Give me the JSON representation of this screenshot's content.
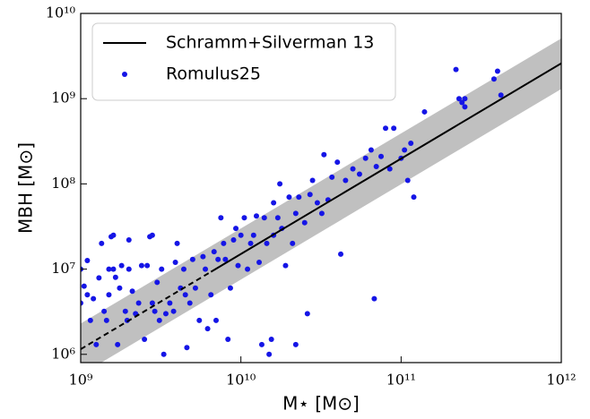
{
  "chart_data": {
    "type": "scatter",
    "xlabel": "M⋆ [M⊙]",
    "ylabel": "MBH [M⊙]",
    "log_x": true,
    "log_y": true,
    "grid": false,
    "legend": "upper left",
    "xlim": [
      1000000000.0,
      1000000000000.0
    ],
    "ylim": [
      800000,
      10000000000
    ],
    "xticks": [
      {
        "value": 1000000000.0,
        "label": "10⁹"
      },
      {
        "value": 10000000000.0,
        "label": "10¹⁰"
      },
      {
        "value": 100000000000.0,
        "label": "10¹¹"
      },
      {
        "value": 1000000000000.0,
        "label": "10¹²"
      }
    ],
    "yticks": [
      {
        "value": 1000000.0,
        "label": "10⁶"
      },
      {
        "value": 10000000.0,
        "label": "10⁷"
      },
      {
        "value": 100000000.0,
        "label": "10⁸"
      },
      {
        "value": 1000000000.0,
        "label": "10⁹"
      },
      {
        "value": 10000000000.0,
        "label": "10¹⁰"
      }
    ],
    "band": {
      "x": [
        1000000000.0,
        1000000000000.0
      ],
      "lower": [
        575000,
        1300000000
      ],
      "upper": [
        2300000,
        5100000000
      ],
      "color": "#c0c0c0"
    },
    "series": [
      {
        "name": "Schramm+Silverman 13",
        "type": "line",
        "color": "#000000",
        "x": [
          1000000000.0,
          6500000000.0,
          1000000000000.0
        ],
        "values": [
          1150000,
          9300000,
          2600000000
        ],
        "linestyles": [
          "dashed",
          "solid"
        ]
      },
      {
        "name": "Romulus25",
        "type": "scatter",
        "color": "#1515e6",
        "x": [
          1000000000.0,
          1050000000.0,
          1000000000.0,
          1100000000.0,
          1100000000.0,
          1150000000.0,
          1200000000.0,
          1250000000.0,
          1300000000.0,
          1350000000.0,
          1400000000.0,
          1450000000.0,
          1500000000.0,
          1500000000.0,
          1550000000.0,
          1600000000.0,
          1600000000.0,
          1650000000.0,
          1700000000.0,
          1750000000.0,
          1800000000.0,
          1900000000.0,
          1950000000.0,
          2000000000.0,
          2000000000.0,
          2100000000.0,
          2200000000.0,
          2300000000.0,
          2400000000.0,
          2500000000.0,
          2600000000.0,
          2700000000.0,
          2800000000.0,
          2800000000.0,
          2900000000.0,
          3000000000.0,
          3100000000.0,
          3200000000.0,
          3300000000.0,
          3400000000.0,
          3600000000.0,
          3800000000.0,
          3900000000.0,
          4000000000.0,
          4200000000.0,
          4400000000.0,
          4500000000.0,
          4600000000.0,
          4800000000.0,
          5000000000.0,
          5200000000.0,
          5500000000.0,
          5800000000.0,
          6000000000.0,
          6200000000.0,
          6500000000.0,
          6800000000.0,
          7000000000.0,
          7200000000.0,
          7500000000.0,
          7800000000.0,
          8000000000.0,
          8300000000.0,
          8600000000.0,
          9000000000.0,
          9300000000.0,
          9600000000.0,
          10000000000.0,
          10500000000.0,
          11000000000.0,
          11500000000.0,
          12000000000.0,
          12500000000.0,
          13000000000.0,
          13500000000.0,
          14000000000.0,
          14500000000.0,
          15000000000.0,
          15500000000.0,
          16000000000.0,
          16000000000.0,
          17000000000.0,
          17500000000.0,
          18000000000.0,
          19000000000.0,
          20000000000.0,
          21000000000.0,
          22000000000.0,
          22000000000.0,
          23000000000.0,
          25000000000.0,
          26000000000.0,
          27000000000.0,
          28000000000.0,
          30000000000.0,
          32000000000.0,
          33000000000.0,
          35000000000.0,
          37000000000.0,
          40000000000.0,
          42000000000.0,
          45000000000.0,
          50000000000.0,
          55000000000.0,
          60000000000.0,
          65000000000.0,
          68000000000.0,
          70000000000.0,
          75000000000.0,
          80000000000.0,
          85000000000.0,
          90000000000.0,
          100000000000.0,
          105000000000.0,
          110000000000.0,
          115000000000.0,
          120000000000.0,
          140000000000.0,
          220000000000.0,
          230000000000.0,
          240000000000.0,
          250000000000.0,
          250000000000.0,
          380000000000.0,
          400000000000.0,
          420000000000.0
        ],
        "values": [
          10000000.0,
          6300000.0,
          4000000.0,
          5000000.0,
          12600000.0,
          2500000.0,
          4500000.0,
          1300000.0,
          7900000.0,
          20000000.0,
          3200000.0,
          2500000.0,
          10000000.0,
          5000000.0,
          24000000.0,
          25000000.0,
          10000000.0,
          8000000.0,
          1300000.0,
          6000000.0,
          11000000.0,
          3200000.0,
          2500000.0,
          10000000.0,
          22000000.0,
          5500000.0,
          3000000.0,
          4000000.0,
          11000000.0,
          1500000.0,
          11000000.0,
          24000000.0,
          25000000.0,
          4000000.0,
          3200000.0,
          7000000.0,
          2500000.0,
          10000000.0,
          1000000.0,
          3000000.0,
          4000000.0,
          3200000.0,
          12000000.0,
          20000000.0,
          6000000.0,
          10000000.0,
          5000000.0,
          1200000.0,
          4000000.0,
          13000000.0,
          6000000.0,
          2500000.0,
          14000000.0,
          10000000.0,
          2000000.0,
          5000000.0,
          16000000.0,
          2500000.0,
          13000000.0,
          40000000.0,
          20000000.0,
          13000000.0,
          1500000.0,
          6000000.0,
          22000000.0,
          30000000.0,
          11000000.0,
          25000000.0,
          40000000.0,
          10000000.0,
          20000000.0,
          25000000.0,
          42000000.0,
          12000000.0,
          1300000.0,
          40000000.0,
          20000000.0,
          1000000.0,
          1500000.0,
          60000000.0,
          25000000.0,
          40000000.0,
          100000000.0,
          30000000.0,
          11000000.0,
          70000000.0,
          20000000.0,
          1300000.0,
          45000000.0,
          70000000.0,
          35000000.0,
          3000000.0,
          75000000.0,
          110000000.0,
          60000000.0,
          45000000.0,
          220000000.0,
          65000000.0,
          120000000.0,
          180000000.0,
          15000000.0,
          110000000.0,
          150000000.0,
          130000000.0,
          200000000.0,
          250000000.0,
          4500000.0,
          160000000.0,
          210000000.0,
          450000000.0,
          150000000.0,
          450000000.0,
          200000000.0,
          250000000.0,
          110000000.0,
          300000000.0,
          70000000.0,
          700000000.0,
          2200000000.0,
          1000000000.0,
          900000000.0,
          800000000.0,
          1000000000.0,
          1700000000.0,
          2100000000.0,
          1100000000.0
        ]
      }
    ]
  }
}
